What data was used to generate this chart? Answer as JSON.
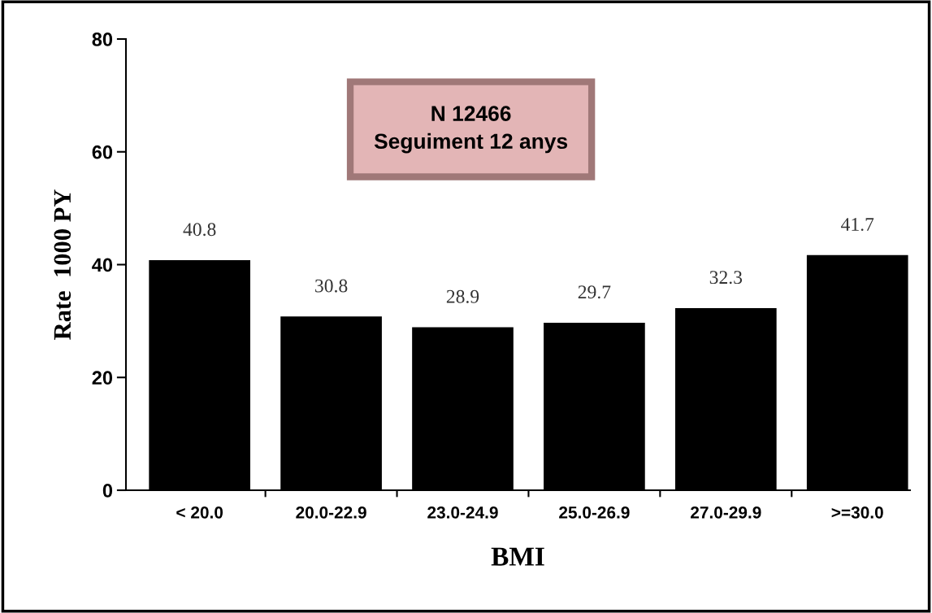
{
  "chart_data": {
    "type": "bar",
    "categories": [
      "< 20.0",
      "20.0-22.9",
      "23.0-24.9",
      "25.0-26.9",
      "27.0-29.9",
      ">=30.0"
    ],
    "values": [
      40.8,
      30.8,
      28.9,
      29.7,
      32.3,
      41.7
    ],
    "color": "#000000",
    "xlabel": "BMI",
    "ylabel": "Rate  1000 PY",
    "ylim": [
      0,
      80
    ],
    "yticks": [
      0,
      20,
      40,
      60,
      80
    ],
    "data_labels": true,
    "grid": false,
    "legend": false,
    "annotations": [
      "N 12466\nSeguiment 12 anys"
    ]
  }
}
